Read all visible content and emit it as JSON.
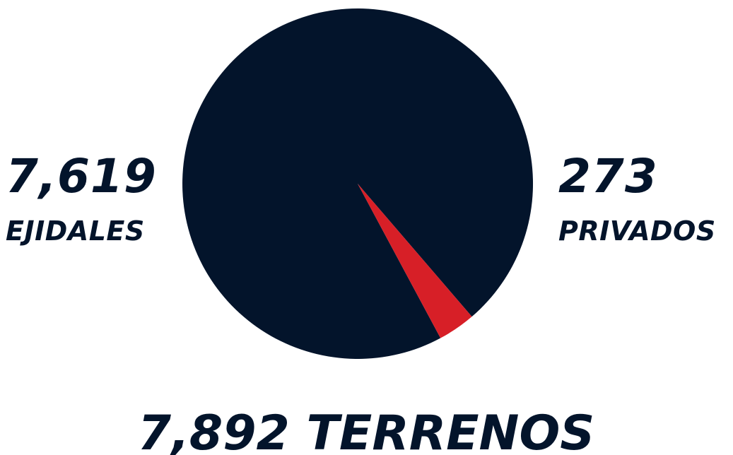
{
  "colors": {
    "ejidales": "#03142B",
    "privados": "#D71F27",
    "text": "#03142B"
  },
  "chart_data": {
    "type": "pie",
    "categories": [
      "EJIDALES",
      "PRIVADOS"
    ],
    "values": [
      7619,
      273
    ],
    "labels": [
      {
        "value": "7,619",
        "name": "EJIDALES"
      },
      {
        "value": "273",
        "name": "PRIVADOS"
      }
    ],
    "total": "7,892 TERRENOS"
  }
}
